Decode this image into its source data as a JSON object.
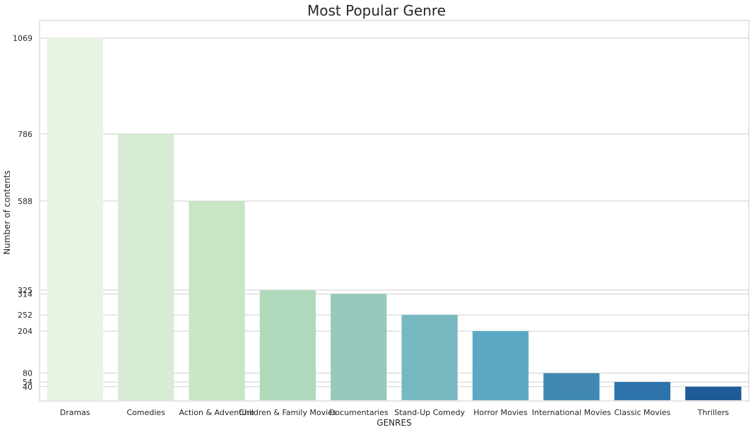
{
  "chart_data": {
    "type": "bar",
    "title": "Most Popular Genre",
    "xlabel": "GENRES",
    "ylabel": "Number of contents",
    "categories": [
      "Dramas",
      "Comedies",
      "Action & Adventure",
      "Children & Family Movies",
      "Documentaries",
      "Stand-Up Comedy",
      "Horror Movies",
      "International Movies",
      "Classic Movies",
      "Thrillers"
    ],
    "values": [
      1069,
      786,
      588,
      325,
      314,
      252,
      204,
      80,
      54,
      40
    ],
    "yticks": [
      1069,
      786,
      588,
      325,
      314,
      252,
      204,
      80,
      54,
      40
    ],
    "ylim": [
      0,
      1069
    ],
    "colors": [
      "#e7f4e2",
      "#d6ecd3",
      "#c8e5c6",
      "#b0d9bc",
      "#96c9bb",
      "#78b9c1",
      "#5aa8c4",
      "#4088b1",
      "#2f73ad",
      "#1f5b98"
    ],
    "grid": true,
    "legend": "none"
  }
}
